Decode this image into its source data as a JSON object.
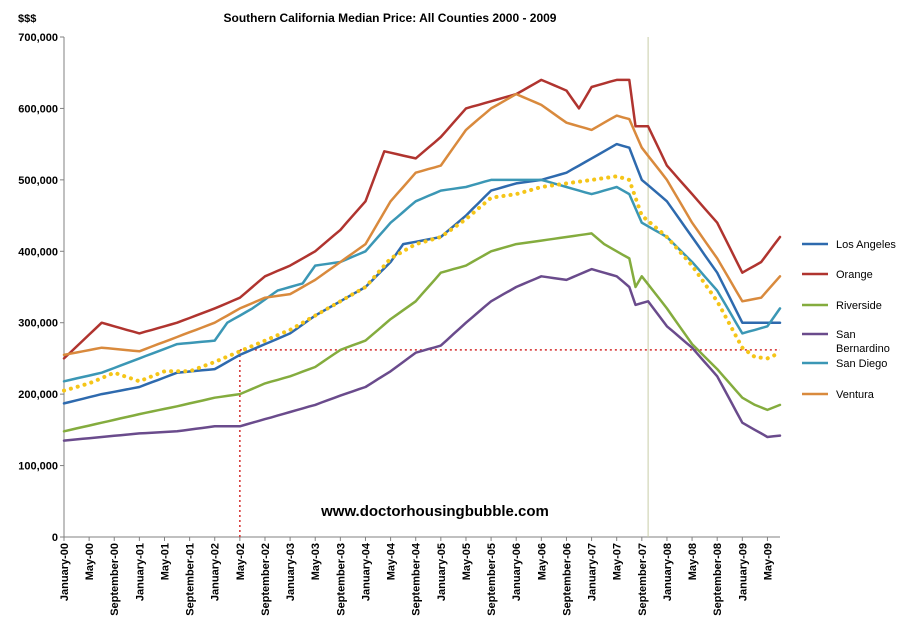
{
  "chart_data": {
    "type": "line",
    "title": "Southern California Median Price:  All Counties 2000 - 2009",
    "ylabel": "$$$",
    "ylim": [
      0,
      700000
    ],
    "yticks": [
      {
        "value": 0,
        "label": "0"
      },
      {
        "value": 100000,
        "label": "100,000"
      },
      {
        "value": 200000,
        "label": "200,000"
      },
      {
        "value": 300000,
        "label": "300,000"
      },
      {
        "value": 400000,
        "label": "400,000"
      },
      {
        "value": 500000,
        "label": "500,000"
      },
      {
        "value": 600000,
        "label": "600,000"
      },
      {
        "value": 700000,
        "label": "700,000"
      }
    ],
    "xticks": [
      {
        "index": 0,
        "label": "January-00"
      },
      {
        "index": 4,
        "label": "May-00"
      },
      {
        "index": 8,
        "label": "September-00"
      },
      {
        "index": 12,
        "label": "January-01"
      },
      {
        "index": 16,
        "label": "May-01"
      },
      {
        "index": 20,
        "label": "September-01"
      },
      {
        "index": 24,
        "label": "January-02"
      },
      {
        "index": 28,
        "label": "May-02"
      },
      {
        "index": 32,
        "label": "September-02"
      },
      {
        "index": 36,
        "label": "January-03"
      },
      {
        "index": 40,
        "label": "May-03"
      },
      {
        "index": 44,
        "label": "September-03"
      },
      {
        "index": 48,
        "label": "January-04"
      },
      {
        "index": 52,
        "label": "May-04"
      },
      {
        "index": 56,
        "label": "September-04"
      },
      {
        "index": 60,
        "label": "January-05"
      },
      {
        "index": 64,
        "label": "May-05"
      },
      {
        "index": 68,
        "label": "September-05"
      },
      {
        "index": 72,
        "label": "January-06"
      },
      {
        "index": 76,
        "label": "May-06"
      },
      {
        "index": 80,
        "label": "September-06"
      },
      {
        "index": 84,
        "label": "January-07"
      },
      {
        "index": 88,
        "label": "May-07"
      },
      {
        "index": 92,
        "label": "September-07"
      },
      {
        "index": 96,
        "label": "January-08"
      },
      {
        "index": 100,
        "label": "May-08"
      },
      {
        "index": 104,
        "label": "September-08"
      },
      {
        "index": 108,
        "label": "January-09"
      },
      {
        "index": 112,
        "label": "May-09"
      }
    ],
    "x_count": 115,
    "grid": {
      "horizontal": false,
      "vertical": false
    },
    "legend_position": "right",
    "series": [
      {
        "name": "Los Angeles",
        "color": "#2E6AAE",
        "style": "solid",
        "keypoints": [
          [
            0,
            187000
          ],
          [
            6,
            200000
          ],
          [
            12,
            210000
          ],
          [
            18,
            230000
          ],
          [
            24,
            235000
          ],
          [
            28,
            255000
          ],
          [
            32,
            270000
          ],
          [
            36,
            285000
          ],
          [
            40,
            310000
          ],
          [
            44,
            330000
          ],
          [
            48,
            350000
          ],
          [
            52,
            385000
          ],
          [
            54,
            410000
          ],
          [
            60,
            420000
          ],
          [
            64,
            450000
          ],
          [
            68,
            485000
          ],
          [
            72,
            495000
          ],
          [
            76,
            500000
          ],
          [
            80,
            510000
          ],
          [
            84,
            530000
          ],
          [
            88,
            550000
          ],
          [
            90,
            545000
          ],
          [
            92,
            500000
          ],
          [
            96,
            470000
          ],
          [
            100,
            420000
          ],
          [
            104,
            370000
          ],
          [
            108,
            300000
          ],
          [
            114,
            300000
          ]
        ]
      },
      {
        "name": "Orange",
        "color": "#B0342F",
        "style": "solid",
        "keypoints": [
          [
            0,
            250000
          ],
          [
            6,
            300000
          ],
          [
            12,
            285000
          ],
          [
            18,
            300000
          ],
          [
            24,
            320000
          ],
          [
            28,
            335000
          ],
          [
            32,
            365000
          ],
          [
            36,
            380000
          ],
          [
            40,
            400000
          ],
          [
            44,
            430000
          ],
          [
            48,
            470000
          ],
          [
            51,
            540000
          ],
          [
            56,
            530000
          ],
          [
            60,
            560000
          ],
          [
            64,
            600000
          ],
          [
            68,
            610000
          ],
          [
            72,
            620000
          ],
          [
            76,
            640000
          ],
          [
            80,
            625000
          ],
          [
            82,
            600000
          ],
          [
            84,
            630000
          ],
          [
            88,
            640000
          ],
          [
            90,
            640000
          ],
          [
            91,
            575000
          ],
          [
            93,
            575000
          ],
          [
            96,
            520000
          ],
          [
            100,
            480000
          ],
          [
            104,
            440000
          ],
          [
            108,
            370000
          ],
          [
            111,
            385000
          ],
          [
            114,
            420000
          ]
        ]
      },
      {
        "name": "Riverside",
        "color": "#84AC3E",
        "style": "solid",
        "keypoints": [
          [
            0,
            148000
          ],
          [
            6,
            160000
          ],
          [
            12,
            172000
          ],
          [
            18,
            183000
          ],
          [
            24,
            195000
          ],
          [
            28,
            200000
          ],
          [
            32,
            215000
          ],
          [
            36,
            225000
          ],
          [
            40,
            238000
          ],
          [
            44,
            262000
          ],
          [
            48,
            275000
          ],
          [
            52,
            305000
          ],
          [
            56,
            330000
          ],
          [
            60,
            370000
          ],
          [
            64,
            380000
          ],
          [
            68,
            400000
          ],
          [
            72,
            410000
          ],
          [
            76,
            415000
          ],
          [
            80,
            420000
          ],
          [
            84,
            425000
          ],
          [
            86,
            410000
          ],
          [
            90,
            390000
          ],
          [
            91,
            350000
          ],
          [
            92,
            365000
          ],
          [
            96,
            320000
          ],
          [
            100,
            270000
          ],
          [
            104,
            235000
          ],
          [
            108,
            195000
          ],
          [
            110,
            185000
          ],
          [
            112,
            178000
          ],
          [
            114,
            185000
          ]
        ]
      },
      {
        "name": "San\nBernardino",
        "color": "#6A4B8C",
        "style": "solid",
        "keypoints": [
          [
            0,
            135000
          ],
          [
            6,
            140000
          ],
          [
            12,
            145000
          ],
          [
            18,
            148000
          ],
          [
            24,
            155000
          ],
          [
            28,
            155000
          ],
          [
            32,
            165000
          ],
          [
            36,
            175000
          ],
          [
            40,
            185000
          ],
          [
            44,
            198000
          ],
          [
            48,
            210000
          ],
          [
            52,
            232000
          ],
          [
            56,
            258000
          ],
          [
            60,
            268000
          ],
          [
            64,
            300000
          ],
          [
            68,
            330000
          ],
          [
            72,
            350000
          ],
          [
            76,
            365000
          ],
          [
            80,
            360000
          ],
          [
            84,
            375000
          ],
          [
            88,
            365000
          ],
          [
            90,
            350000
          ],
          [
            91,
            325000
          ],
          [
            93,
            330000
          ],
          [
            96,
            295000
          ],
          [
            100,
            265000
          ],
          [
            104,
            225000
          ],
          [
            108,
            160000
          ],
          [
            112,
            140000
          ],
          [
            114,
            142000
          ]
        ]
      },
      {
        "name": "San Diego",
        "color": "#3B97B5",
        "style": "solid",
        "keypoints": [
          [
            0,
            218000
          ],
          [
            6,
            230000
          ],
          [
            12,
            250000
          ],
          [
            18,
            270000
          ],
          [
            24,
            275000
          ],
          [
            26,
            300000
          ],
          [
            30,
            320000
          ],
          [
            34,
            345000
          ],
          [
            38,
            355000
          ],
          [
            40,
            380000
          ],
          [
            44,
            385000
          ],
          [
            48,
            400000
          ],
          [
            52,
            440000
          ],
          [
            56,
            470000
          ],
          [
            60,
            485000
          ],
          [
            64,
            490000
          ],
          [
            68,
            500000
          ],
          [
            72,
            500000
          ],
          [
            76,
            500000
          ],
          [
            80,
            490000
          ],
          [
            84,
            480000
          ],
          [
            88,
            490000
          ],
          [
            90,
            480000
          ],
          [
            92,
            440000
          ],
          [
            96,
            420000
          ],
          [
            100,
            385000
          ],
          [
            104,
            345000
          ],
          [
            108,
            285000
          ],
          [
            112,
            295000
          ],
          [
            114,
            320000
          ]
        ]
      },
      {
        "name": "Ventura",
        "color": "#D98A3D",
        "style": "solid",
        "keypoints": [
          [
            0,
            255000
          ],
          [
            6,
            265000
          ],
          [
            12,
            260000
          ],
          [
            18,
            280000
          ],
          [
            24,
            300000
          ],
          [
            28,
            320000
          ],
          [
            32,
            335000
          ],
          [
            36,
            340000
          ],
          [
            40,
            360000
          ],
          [
            44,
            385000
          ],
          [
            48,
            410000
          ],
          [
            52,
            470000
          ],
          [
            56,
            510000
          ],
          [
            60,
            520000
          ],
          [
            64,
            570000
          ],
          [
            68,
            600000
          ],
          [
            72,
            620000
          ],
          [
            76,
            605000
          ],
          [
            80,
            580000
          ],
          [
            84,
            570000
          ],
          [
            88,
            590000
          ],
          [
            90,
            585000
          ],
          [
            92,
            545000
          ],
          [
            96,
            500000
          ],
          [
            100,
            440000
          ],
          [
            104,
            390000
          ],
          [
            108,
            330000
          ],
          [
            111,
            335000
          ],
          [
            114,
            365000
          ]
        ]
      },
      {
        "name": "",
        "color": "#F5C518",
        "style": "dotted",
        "keypoints": [
          [
            0,
            205000
          ],
          [
            4,
            215000
          ],
          [
            8,
            230000
          ],
          [
            12,
            218000
          ],
          [
            16,
            232000
          ],
          [
            20,
            232000
          ],
          [
            24,
            245000
          ],
          [
            28,
            260000
          ],
          [
            32,
            275000
          ],
          [
            36,
            290000
          ],
          [
            40,
            310000
          ],
          [
            44,
            330000
          ],
          [
            48,
            350000
          ],
          [
            52,
            390000
          ],
          [
            56,
            410000
          ],
          [
            60,
            420000
          ],
          [
            64,
            445000
          ],
          [
            68,
            475000
          ],
          [
            72,
            480000
          ],
          [
            76,
            490000
          ],
          [
            80,
            495000
          ],
          [
            84,
            500000
          ],
          [
            88,
            505000
          ],
          [
            90,
            500000
          ],
          [
            92,
            450000
          ],
          [
            96,
            420000
          ],
          [
            100,
            380000
          ],
          [
            104,
            330000
          ],
          [
            108,
            265000
          ],
          [
            110,
            252000
          ],
          [
            112,
            250000
          ],
          [
            114,
            258000
          ]
        ]
      }
    ],
    "reference_lines": [
      {
        "kind": "horizontal",
        "y": 262000,
        "x_from": 28,
        "x_to": 114,
        "color": "#D42B2B",
        "style": "dotted"
      },
      {
        "kind": "vertical",
        "x": 28,
        "y_from": 0,
        "y_to": 262000,
        "color": "#D42B2B",
        "style": "dotted"
      },
      {
        "kind": "vertical",
        "x": 93,
        "y_from": 0,
        "y_to": 700000,
        "color": "#C8CDA8",
        "style": "solid"
      }
    ]
  },
  "watermark": "www.doctorhousingbubble.com",
  "legend": [
    "Los Angeles",
    "Orange",
    "Riverside",
    "San\nBernardino",
    "San Diego",
    "Ventura"
  ]
}
